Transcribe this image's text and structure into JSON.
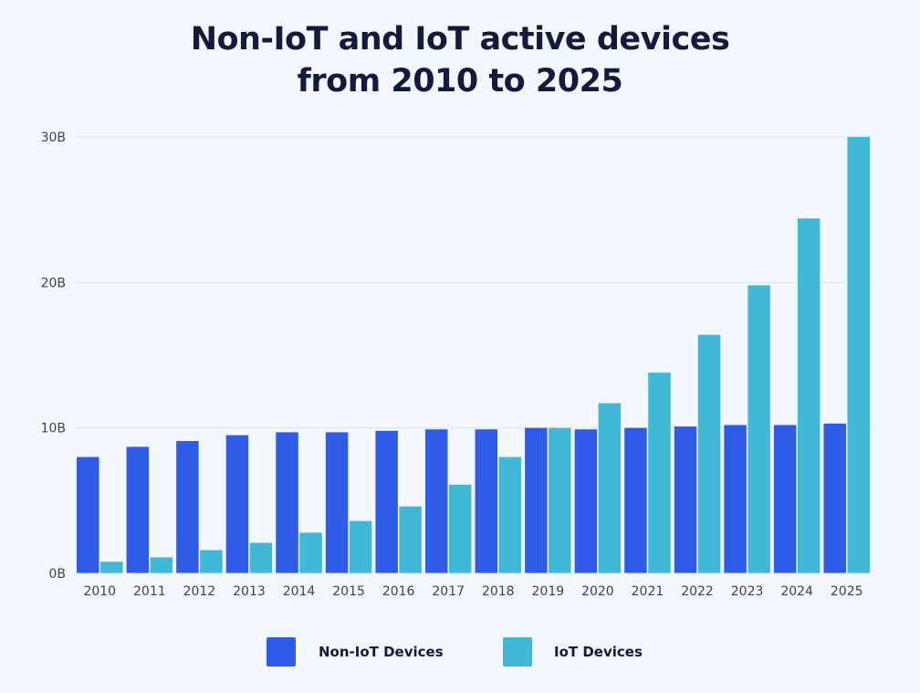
{
  "title_line1": "Non-IoT and IoT active devices",
  "title_line2": "from 2010 to 2025",
  "colors": {
    "background": "#f3f8fe",
    "non_iot": "#2f5be6",
    "iot": "#41b9d6",
    "grid": "#dde4ee",
    "tick_text": "#3c4256",
    "title_text": "#141a3c"
  },
  "chart_data": {
    "type": "bar",
    "title": "Non-IoT and IoT active devices from 2010 to 2025",
    "xlabel": "",
    "ylabel": "",
    "ylim": [
      0,
      30
    ],
    "yticks": [
      0,
      10,
      20,
      30
    ],
    "ytick_labels": [
      "0B",
      "10B",
      "20B",
      "30B"
    ],
    "grid": true,
    "legend_position": "bottom",
    "categories": [
      "2010",
      "2011",
      "2012",
      "2013",
      "2014",
      "2015",
      "2016",
      "2017",
      "2018",
      "2019",
      "2020",
      "2021",
      "2022",
      "2023",
      "2024",
      "2025"
    ],
    "series": [
      {
        "name": "Non-IoT Devices",
        "color": "#2f5be6",
        "values": [
          8.0,
          8.7,
          9.1,
          9.5,
          9.7,
          9.7,
          9.8,
          9.9,
          9.9,
          10.0,
          9.9,
          10.0,
          10.1,
          10.2,
          10.2,
          10.3
        ]
      },
      {
        "name": "IoT Devices",
        "color": "#41b9d6",
        "values": [
          0.8,
          1.1,
          1.6,
          2.1,
          2.8,
          3.6,
          4.6,
          6.1,
          8.0,
          10.0,
          11.7,
          13.8,
          16.4,
          19.8,
          24.4,
          30.0
        ]
      }
    ]
  }
}
